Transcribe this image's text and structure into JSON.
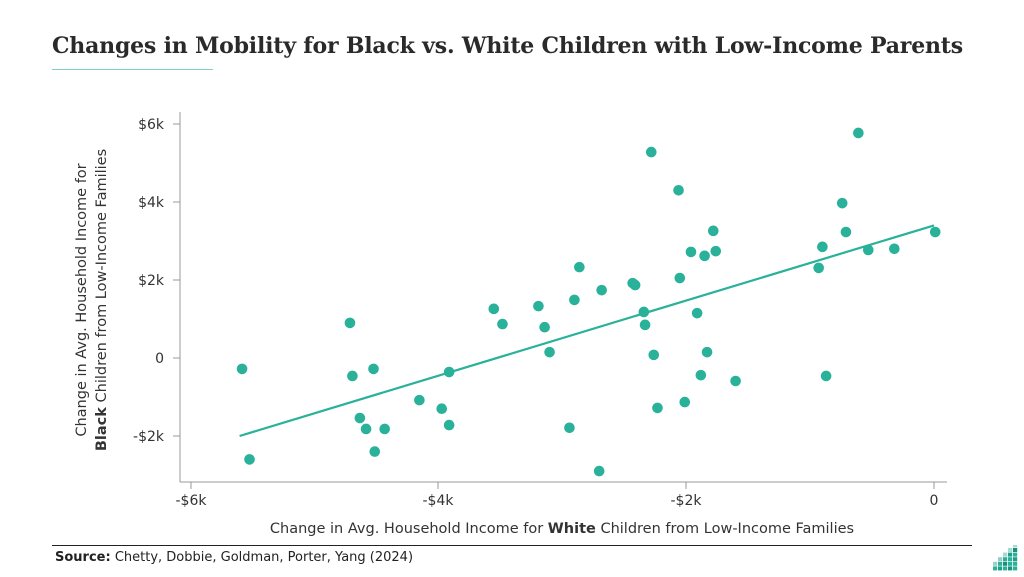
{
  "title": "Changes in Mobility for Black vs. White Children with Low-Income Parents",
  "colors": {
    "accent": "#2ab19a",
    "text": "#2a2a2a",
    "axis": "#999999",
    "underline": "#7fcfc4"
  },
  "source": {
    "label": "Source:",
    "text": "Chetty, Dobbie, Goldman, Porter, Yang (2024)"
  },
  "logo": {
    "name": "bar-grid-logo-icon"
  },
  "chart_data": {
    "type": "scatter",
    "title": "Changes in Mobility for Black vs. White Children with Low-Income Parents",
    "xlabel": {
      "pre": "Change in Avg. Household Income for ",
      "bold": "White",
      "post": " Children from Low-Income Families"
    },
    "ylabel": {
      "line1": "Change in Avg. Household Income for",
      "bold": "Black",
      "line2_post": " Children from Low-Income Families"
    },
    "xlim": [
      -6.0,
      0.1
    ],
    "ylim": [
      -3.1,
      6.3
    ],
    "x_ticks": [
      {
        "value": -6,
        "label": "-$6k"
      },
      {
        "value": -4,
        "label": "-$4k"
      },
      {
        "value": -2,
        "label": "-$2k"
      },
      {
        "value": 0,
        "label": "0"
      }
    ],
    "y_ticks": [
      {
        "value": 6,
        "label": "$6k"
      },
      {
        "value": 4,
        "label": "$4k"
      },
      {
        "value": 2,
        "label": "$2k"
      },
      {
        "value": 0,
        "label": "0"
      },
      {
        "value": -2,
        "label": "-$2k"
      }
    ],
    "units": "thousands of dollars",
    "grid": false,
    "points": [
      [
        -5.58,
        -0.28
      ],
      [
        -5.52,
        -2.6
      ],
      [
        -4.71,
        0.9
      ],
      [
        -4.69,
        -0.46
      ],
      [
        -4.63,
        -1.54
      ],
      [
        -4.58,
        -1.82
      ],
      [
        -4.52,
        -0.28
      ],
      [
        -4.43,
        -1.82
      ],
      [
        -4.51,
        -2.4
      ],
      [
        -4.15,
        -1.08
      ],
      [
        -3.97,
        -1.3
      ],
      [
        -3.91,
        -1.72
      ],
      [
        -3.91,
        -0.36
      ],
      [
        -3.55,
        1.26
      ],
      [
        -3.48,
        0.87
      ],
      [
        -3.19,
        1.33
      ],
      [
        -3.14,
        0.79
      ],
      [
        -3.1,
        0.15
      ],
      [
        -2.94,
        -1.79
      ],
      [
        -2.9,
        1.49
      ],
      [
        -2.86,
        2.33
      ],
      [
        -2.7,
        -2.9
      ],
      [
        -2.68,
        1.74
      ],
      [
        -2.43,
        1.92
      ],
      [
        -2.41,
        1.87
      ],
      [
        -2.34,
        1.18
      ],
      [
        -2.33,
        0.85
      ],
      [
        -2.28,
        5.28
      ],
      [
        -2.26,
        0.08
      ],
      [
        -2.23,
        -1.28
      ],
      [
        -2.06,
        4.3
      ],
      [
        -2.05,
        2.05
      ],
      [
        -2.01,
        -1.13
      ],
      [
        -1.96,
        2.72
      ],
      [
        -1.91,
        1.15
      ],
      [
        -1.88,
        -0.44
      ],
      [
        -1.85,
        2.62
      ],
      [
        -1.83,
        0.15
      ],
      [
        -1.78,
        3.26
      ],
      [
        -1.76,
        2.74
      ],
      [
        -1.6,
        -0.59
      ],
      [
        -0.93,
        2.31
      ],
      [
        -0.9,
        2.85
      ],
      [
        -0.87,
        -0.46
      ],
      [
        -0.74,
        3.97
      ],
      [
        -0.71,
        3.23
      ],
      [
        -0.61,
        5.77
      ],
      [
        -0.53,
        2.77
      ],
      [
        -0.32,
        2.8
      ],
      [
        0.01,
        3.23
      ]
    ],
    "trendline": {
      "x": [
        -5.6,
        0.0
      ],
      "y": [
        -2.0,
        3.4
      ]
    }
  }
}
